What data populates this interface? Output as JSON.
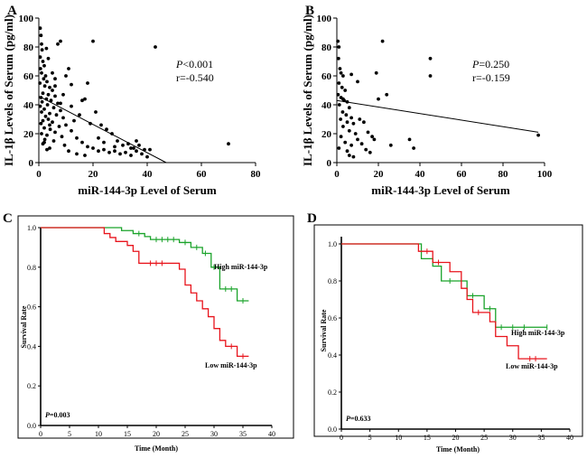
{
  "chart_data": [
    {
      "panel": "A",
      "type": "scatter",
      "xlabel": "miR-144-3p Level of Serum",
      "ylabel": "IL-1β  Levels of Serum (pg/ml)",
      "xlim": [
        0,
        80
      ],
      "ylim": [
        0,
        100
      ],
      "xticks": [
        "0",
        "20",
        "40",
        "60",
        "80"
      ],
      "yticks": [
        "0",
        "20",
        "40",
        "60",
        "80",
        "100"
      ],
      "annotations": {
        "p_label": "P",
        "p_value": "<0.001",
        "r": "r=-0.540"
      },
      "regression_line": {
        "x": [
          0,
          47
        ],
        "y": [
          46,
          0
        ]
      },
      "points": [
        [
          0.5,
          93
        ],
        [
          0.8,
          88
        ],
        [
          1,
          82
        ],
        [
          1.2,
          78
        ],
        [
          0.5,
          73
        ],
        [
          1.5,
          70
        ],
        [
          2,
          67
        ],
        [
          0.6,
          65
        ],
        [
          1,
          62
        ],
        [
          2.5,
          60
        ],
        [
          1.8,
          58
        ],
        [
          3,
          56
        ],
        [
          0.4,
          55
        ],
        [
          2.2,
          53
        ],
        [
          4,
          52
        ],
        [
          5,
          50
        ],
        [
          1.5,
          48
        ],
        [
          3.5,
          47
        ],
        [
          6,
          46
        ],
        [
          0.8,
          45
        ],
        [
          2.8,
          44
        ],
        [
          4.5,
          43
        ],
        [
          1.2,
          42
        ],
        [
          7,
          41
        ],
        [
          3.2,
          40
        ],
        [
          0.5,
          39
        ],
        [
          5.5,
          38
        ],
        [
          2,
          37
        ],
        [
          8,
          36
        ],
        [
          1,
          35
        ],
        [
          4,
          34
        ],
        [
          6.5,
          33
        ],
        [
          2.5,
          32
        ],
        [
          9,
          31
        ],
        [
          3.5,
          30
        ],
        [
          1.5,
          29
        ],
        [
          5,
          28
        ],
        [
          0.8,
          27
        ],
        [
          10,
          26
        ],
        [
          7.5,
          25
        ],
        [
          2,
          24
        ],
        [
          4.2,
          23
        ],
        [
          12,
          22
        ],
        [
          6,
          21
        ],
        [
          1,
          20
        ],
        [
          3,
          19
        ],
        [
          8.5,
          18
        ],
        [
          14,
          17
        ],
        [
          2.2,
          16
        ],
        [
          5.5,
          15
        ],
        [
          16,
          14
        ],
        [
          1.5,
          13
        ],
        [
          9.5,
          12
        ],
        [
          18,
          11
        ],
        [
          4,
          10
        ],
        [
          20,
          10
        ],
        [
          3,
          9
        ],
        [
          22,
          8
        ],
        [
          11,
          8
        ],
        [
          24,
          9
        ],
        [
          26,
          7
        ],
        [
          14,
          6
        ],
        [
          28,
          8
        ],
        [
          30,
          6
        ],
        [
          17,
          5
        ],
        [
          32,
          7
        ],
        [
          34,
          5
        ],
        [
          36,
          8
        ],
        [
          38,
          6
        ],
        [
          40,
          4
        ],
        [
          20,
          84
        ],
        [
          8,
          84
        ],
        [
          7,
          82
        ],
        [
          11,
          65
        ],
        [
          18,
          55
        ],
        [
          17,
          44
        ],
        [
          5,
          62
        ],
        [
          6,
          58
        ],
        [
          9,
          47
        ],
        [
          12,
          39
        ],
        [
          15,
          33
        ],
        [
          21,
          35
        ],
        [
          25,
          23
        ],
        [
          27,
          20
        ],
        [
          29,
          15
        ],
        [
          31,
          12
        ],
        [
          33,
          13
        ],
        [
          35,
          10
        ],
        [
          37,
          12
        ],
        [
          39,
          9
        ],
        [
          41,
          9
        ],
        [
          22,
          17
        ],
        [
          24,
          14
        ],
        [
          19,
          27
        ],
        [
          13,
          29
        ],
        [
          10,
          60
        ],
        [
          6,
          53
        ],
        [
          3.5,
          72
        ],
        [
          2.8,
          79
        ],
        [
          43,
          80
        ],
        [
          70,
          13
        ],
        [
          36,
          15
        ],
        [
          34,
          10
        ],
        [
          28,
          11
        ],
        [
          23,
          26
        ],
        [
          16,
          43
        ],
        [
          12,
          54
        ],
        [
          8,
          41
        ],
        [
          4,
          26
        ],
        [
          2,
          14
        ]
      ]
    },
    {
      "panel": "B",
      "type": "scatter",
      "xlabel": "miR-144-3p Level of Serum",
      "ylabel": "IL-1β  Levels of Serum (pg/ml)",
      "xlim": [
        0,
        100
      ],
      "ylim": [
        0,
        100
      ],
      "xticks": [
        "0",
        "20",
        "40",
        "60",
        "80",
        "100"
      ],
      "yticks": [
        "0",
        "20",
        "40",
        "60",
        "80",
        "100"
      ],
      "annotations": {
        "p_label": "P",
        "p_value": "=0.250",
        "r": "r=-0.159"
      },
      "regression_line": {
        "x": [
          0,
          97
        ],
        "y": [
          43,
          21
        ]
      },
      "points": [
        [
          0.5,
          84
        ],
        [
          1,
          80
        ],
        [
          0.8,
          72
        ],
        [
          1.5,
          65
        ],
        [
          2,
          62
        ],
        [
          3,
          60
        ],
        [
          1,
          55
        ],
        [
          2.5,
          52
        ],
        [
          4,
          50
        ],
        [
          0.6,
          47
        ],
        [
          2,
          45
        ],
        [
          3.5,
          43
        ],
        [
          5,
          42
        ],
        [
          1.2,
          40
        ],
        [
          6,
          38
        ],
        [
          2.8,
          35
        ],
        [
          4.5,
          33
        ],
        [
          7,
          31
        ],
        [
          1.8,
          30
        ],
        [
          5,
          28
        ],
        [
          8,
          27
        ],
        [
          3,
          25
        ],
        [
          6,
          22
        ],
        [
          9,
          20
        ],
        [
          2,
          18
        ],
        [
          10,
          16
        ],
        [
          4,
          14
        ],
        [
          12,
          13
        ],
        [
          7,
          12
        ],
        [
          1,
          10
        ],
        [
          14,
          9
        ],
        [
          5,
          8
        ],
        [
          16,
          7
        ],
        [
          6,
          5
        ],
        [
          8,
          4
        ],
        [
          11,
          30
        ],
        [
          13,
          28
        ],
        [
          15,
          21
        ],
        [
          17,
          18
        ],
        [
          18,
          16
        ],
        [
          19,
          62
        ],
        [
          22,
          84
        ],
        [
          24,
          47
        ],
        [
          26,
          12
        ],
        [
          20,
          44
        ],
        [
          10,
          56
        ],
        [
          7,
          61
        ],
        [
          3,
          44
        ],
        [
          35,
          16
        ],
        [
          37,
          10
        ],
        [
          45,
          72
        ],
        [
          45,
          60
        ],
        [
          97,
          19
        ]
      ]
    },
    {
      "panel": "C",
      "type": "line",
      "subtype": "kaplan-meier",
      "xlabel": "Time (Month)",
      "ylabel": "Survival Rate",
      "xlim": [
        0,
        40
      ],
      "ylim": [
        0,
        1.0
      ],
      "xticks": [
        "0",
        "5",
        "10",
        "15",
        "20",
        "25",
        "30",
        "35",
        "40"
      ],
      "yticks": [
        "0.0",
        "0.2",
        "0.4",
        "0.6",
        "0.8",
        "1.0"
      ],
      "annotations": {
        "p_label": "P",
        "p_value": "=0.003"
      },
      "series": [
        {
          "name": "High miR-144-3p",
          "color": "#1aa32a",
          "steps": [
            [
              0,
              1.0
            ],
            [
              14,
              0.985
            ],
            [
              16,
              0.97
            ],
            [
              18,
              0.955
            ],
            [
              19,
              0.94
            ],
            [
              24,
              0.925
            ],
            [
              26,
              0.9
            ],
            [
              28,
              0.87
            ],
            [
              29.5,
              0.8
            ],
            [
              31,
              0.69
            ],
            [
              34,
              0.63
            ],
            [
              36,
              0.63
            ]
          ],
          "censors": [
            [
              17,
              0.97
            ],
            [
              20,
              0.94
            ],
            [
              21,
              0.94
            ],
            [
              22,
              0.94
            ],
            [
              23,
              0.94
            ],
            [
              25,
              0.925
            ],
            [
              27,
              0.9
            ],
            [
              28.5,
              0.87
            ],
            [
              30,
              0.8
            ],
            [
              32,
              0.69
            ],
            [
              33,
              0.69
            ],
            [
              35,
              0.63
            ]
          ]
        },
        {
          "name": "Low miR-144-3p",
          "color": "#e8141c",
          "steps": [
            [
              0,
              1.0
            ],
            [
              11,
              0.97
            ],
            [
              12,
              0.95
            ],
            [
              13,
              0.93
            ],
            [
              15,
              0.91
            ],
            [
              16,
              0.88
            ],
            [
              17,
              0.82
            ],
            [
              22,
              0.82
            ],
            [
              24,
              0.79
            ],
            [
              25,
              0.71
            ],
            [
              26,
              0.67
            ],
            [
              27,
              0.63
            ],
            [
              28,
              0.59
            ],
            [
              29,
              0.55
            ],
            [
              30,
              0.49
            ],
            [
              31,
              0.43
            ],
            [
              32,
              0.4
            ],
            [
              34,
              0.35
            ],
            [
              36,
              0.35
            ]
          ],
          "censors": [
            [
              19,
              0.82
            ],
            [
              20,
              0.82
            ],
            [
              21,
              0.82
            ],
            [
              33,
              0.4
            ],
            [
              35,
              0.35
            ]
          ]
        }
      ]
    },
    {
      "panel": "D",
      "type": "line",
      "subtype": "kaplan-meier",
      "xlabel": "Time (Month)",
      "ylabel": "Survival Rate",
      "xlim": [
        0,
        40
      ],
      "ylim": [
        0,
        1.0
      ],
      "xticks": [
        "0",
        "5",
        "10",
        "15",
        "20",
        "25",
        "30",
        "35",
        "40"
      ],
      "yticks": [
        "0.0",
        "0.2",
        "0.4",
        "0.6",
        "0.8",
        "1.0"
      ],
      "annotations": {
        "p_label": "P",
        "p_value": "=0.633"
      },
      "series": [
        {
          "name": "High miR-144-3p",
          "color": "#1aa32a",
          "steps": [
            [
              0,
              1.0
            ],
            [
              14,
              0.92
            ],
            [
              16,
              0.88
            ],
            [
              17.5,
              0.8
            ],
            [
              21,
              0.8
            ],
            [
              22,
              0.72
            ],
            [
              25,
              0.65
            ],
            [
              27,
              0.55
            ],
            [
              36,
              0.55
            ]
          ],
          "censors": [
            [
              19,
              0.8
            ],
            [
              23,
              0.72
            ],
            [
              26,
              0.65
            ],
            [
              28,
              0.55
            ],
            [
              30,
              0.55
            ],
            [
              32,
              0.55
            ],
            [
              36,
              0.55
            ]
          ]
        },
        {
          "name": "Low miR-144-3p",
          "color": "#e8141c",
          "steps": [
            [
              0,
              1.0
            ],
            [
              13.5,
              0.96
            ],
            [
              16,
              0.9
            ],
            [
              19,
              0.85
            ],
            [
              21,
              0.76
            ],
            [
              22,
              0.7
            ],
            [
              23,
              0.63
            ],
            [
              26,
              0.58
            ],
            [
              27,
              0.5
            ],
            [
              29,
              0.45
            ],
            [
              31,
              0.38
            ],
            [
              36,
              0.38
            ]
          ],
          "censors": [
            [
              15,
              0.96
            ],
            [
              17,
              0.9
            ],
            [
              24,
              0.63
            ],
            [
              33,
              0.38
            ],
            [
              34,
              0.38
            ]
          ]
        }
      ]
    }
  ]
}
